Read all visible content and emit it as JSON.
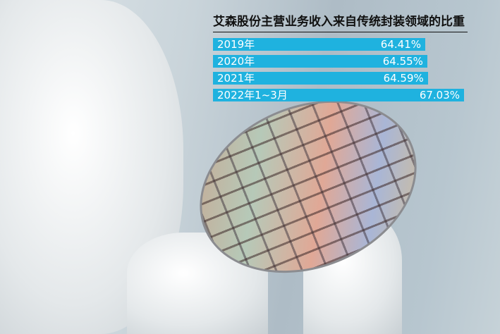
{
  "chart_data": {
    "type": "bar",
    "orientation": "horizontal",
    "title": "艾森股份主营业务收入来自传统封装领域的比重",
    "categories": [
      "2019年",
      "2020年",
      "2021年",
      "2022年1~3月"
    ],
    "values": [
      64.41,
      64.55,
      64.59,
      67.03
    ],
    "value_labels": [
      "64.41%",
      "64.55%",
      "64.59%",
      "67.03%"
    ],
    "unit": "%",
    "bar_color": "#1fb2df",
    "grid": false
  }
}
